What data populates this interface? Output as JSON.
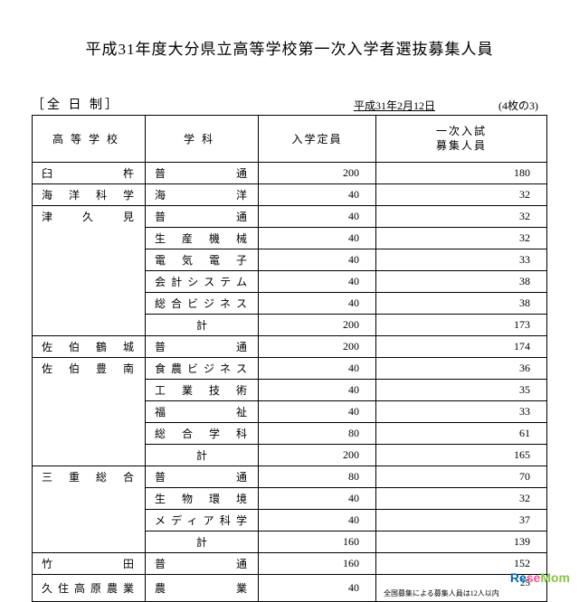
{
  "title": "平成31年度大分県立高等学校第一次入学者選抜募集人員",
  "header": {
    "label": "［全 日 制］",
    "date": "平成31年2月12日",
    "page": "(4枚の3)"
  },
  "columns": {
    "school": "高等学校",
    "dept": "学科",
    "capacity": "入学定員",
    "recruit": "一次入試募集人員"
  },
  "rows": [
    {
      "school": "臼杵",
      "school_rowspan": 1,
      "dept": "普通",
      "capacity": "200",
      "recruit": "180"
    },
    {
      "school": "海洋科学",
      "school_rowspan": 1,
      "dept": "海洋",
      "capacity": "40",
      "recruit": "32"
    },
    {
      "school": "津久見",
      "school_rowspan": 6,
      "dept": "普通",
      "capacity": "40",
      "recruit": "32"
    },
    {
      "school": "",
      "dept": "生産機械",
      "capacity": "40",
      "recruit": "32"
    },
    {
      "school": "",
      "dept": "電気電子",
      "capacity": "40",
      "recruit": "33"
    },
    {
      "school": "",
      "dept": "会計システム",
      "capacity": "40",
      "recruit": "38"
    },
    {
      "school": "",
      "dept": "総合ビジネス",
      "capacity": "40",
      "recruit": "38"
    },
    {
      "school": "",
      "dept": "計",
      "capacity": "200",
      "recruit": "173"
    },
    {
      "school": "佐伯鶴城",
      "school_rowspan": 1,
      "dept": "普通",
      "capacity": "200",
      "recruit": "174"
    },
    {
      "school": "佐伯豊南",
      "school_rowspan": 5,
      "dept": "食農ビジネス",
      "capacity": "40",
      "recruit": "36"
    },
    {
      "school": "",
      "dept": "工業技術",
      "capacity": "40",
      "recruit": "35"
    },
    {
      "school": "",
      "dept": "福祉",
      "capacity": "40",
      "recruit": "33"
    },
    {
      "school": "",
      "dept": "総合学科",
      "capacity": "80",
      "recruit": "61"
    },
    {
      "school": "",
      "dept": "計",
      "capacity": "200",
      "recruit": "165"
    },
    {
      "school": "三重総合",
      "school_rowspan": 4,
      "dept": "普通",
      "capacity": "80",
      "recruit": "70"
    },
    {
      "school": "",
      "dept": "生物環境",
      "capacity": "40",
      "recruit": "32"
    },
    {
      "school": "",
      "dept": "メディア科学",
      "capacity": "40",
      "recruit": "37"
    },
    {
      "school": "",
      "dept": "計",
      "capacity": "160",
      "recruit": "139"
    },
    {
      "school": "竹田",
      "school_rowspan": 1,
      "dept": "普通",
      "capacity": "160",
      "recruit": "152"
    },
    {
      "school": "久住高原農業",
      "school_rowspan": 1,
      "dept": "農業",
      "capacity": "40",
      "recruit_special": {
        "num": "25",
        "note": "全国募集による募集人員は12人以内"
      }
    }
  ],
  "watermark": {
    "re": "Re",
    "se": "se",
    "mom": "Mom"
  }
}
